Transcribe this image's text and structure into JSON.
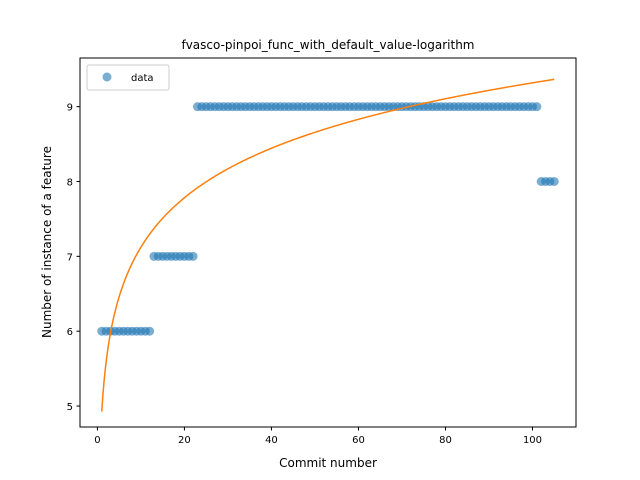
{
  "chart_data": {
    "type": "scatter",
    "title": "fvasco-pinpoi_func_with_default_value-logarithm",
    "xlabel": "Commit number",
    "ylabel": "Number of instance of a feature",
    "xlim": [
      -4,
      110
    ],
    "ylim": [
      4.72,
      9.65
    ],
    "xticks": [
      0,
      20,
      40,
      60,
      80,
      100
    ],
    "yticks": [
      5,
      6,
      7,
      8,
      9
    ],
    "grid": false,
    "legend": {
      "position": "top-left",
      "entries": [
        "data"
      ]
    },
    "series": [
      {
        "name": "data",
        "kind": "scatter",
        "color": "#1f77b4",
        "segments": [
          {
            "x_start": 1,
            "x_end": 12,
            "y": 6
          },
          {
            "x_start": 13,
            "x_end": 22,
            "y": 7
          },
          {
            "x_start": 23,
            "x_end": 101,
            "y": 9
          },
          {
            "x_start": 102,
            "x_end": 105,
            "y": 8
          }
        ]
      },
      {
        "kind": "line",
        "color": "#ff7f0e",
        "fit": "logarithmic",
        "x_range": [
          1,
          105
        ],
        "points": [
          [
            1,
            4.93
          ],
          [
            2,
            5.59
          ],
          [
            3,
            5.97
          ],
          [
            5,
            6.46
          ],
          [
            10,
            7.12
          ],
          [
            20,
            7.78
          ],
          [
            30,
            8.17
          ],
          [
            40,
            8.44
          ],
          [
            50,
            8.66
          ],
          [
            60,
            8.83
          ],
          [
            70,
            8.98
          ],
          [
            80,
            9.11
          ],
          [
            90,
            9.22
          ],
          [
            100,
            9.32
          ],
          [
            105,
            9.36
          ]
        ]
      }
    ]
  }
}
